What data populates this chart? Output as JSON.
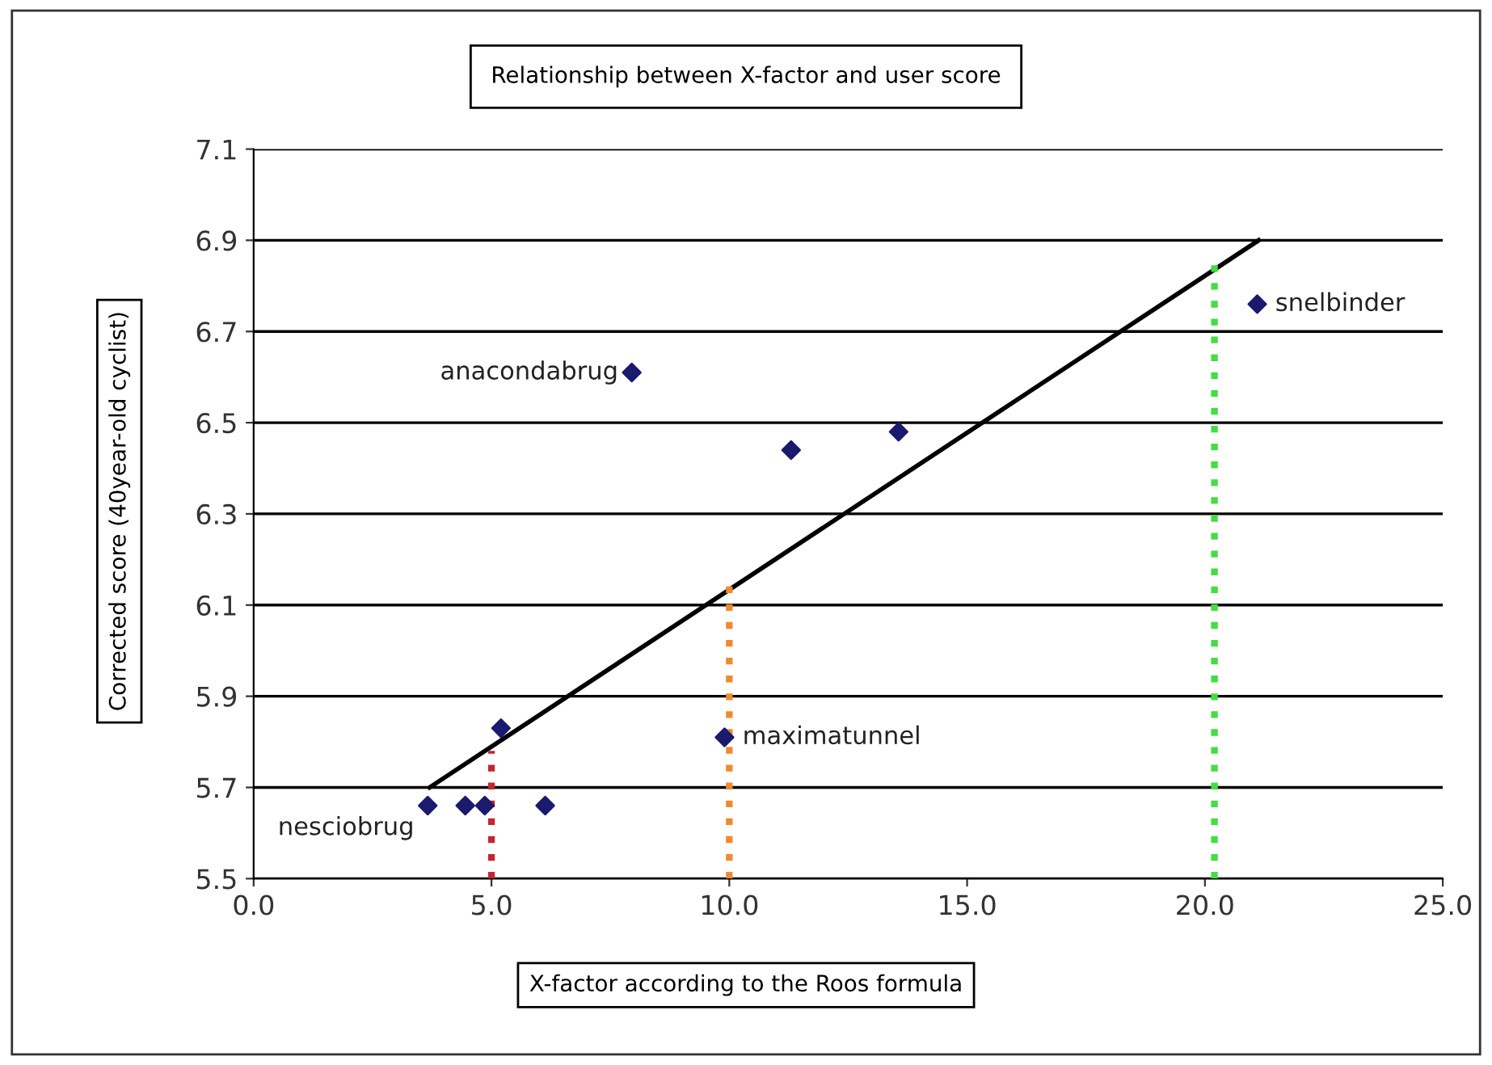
{
  "chart_data": {
    "type": "scatter",
    "title": "Relationship between X-factor and user score",
    "xlabel": "X-factor according to the Roos formula",
    "ylabel": "Corrected score (40year-old cyclist)",
    "series": [
      {
        "color": "#1a1a6e",
        "marker": "diamond",
        "x": [
          3.66,
          4.45,
          4.86,
          6.13,
          5.2,
          9.9,
          7.95,
          11.3,
          13.56,
          21.1
        ],
        "values": [
          5.66,
          5.66,
          5.66,
          5.66,
          5.83,
          5.81,
          6.61,
          6.44,
          6.48,
          6.76
        ]
      },
      {
        "type": "line",
        "color": "#000000",
        "marker": "none",
        "line_style": "solid",
        "x": [
          3.7,
          21.13
        ],
        "values": [
          5.7,
          6.9
        ]
      },
      {
        "type": "line",
        "color": "#c0282d",
        "marker": "none",
        "line_style": "dotted",
        "x": [
          5,
          5
        ],
        "values": [
          5.5,
          5.78
        ]
      },
      {
        "type": "line",
        "color": "#f08a30",
        "marker": "none",
        "line_style": "dotted",
        "x": [
          10,
          10
        ],
        "values": [
          5.5,
          6.15
        ]
      },
      {
        "type": "line",
        "color": "#44dd44",
        "marker": "none",
        "line_style": "dotted",
        "x": [
          20.2,
          20.2
        ],
        "values": [
          5.5,
          6.85
        ]
      }
    ],
    "annotations": [
      {
        "text": "anacondabrug",
        "x": 7.95,
        "y": 6.61
      },
      {
        "text": "nesciobrug",
        "x": 3.66,
        "y": 5.66
      },
      {
        "text": "maximatunnel",
        "x": 9.9,
        "y": 5.81
      },
      {
        "text": "snelbinder",
        "x": 21.1,
        "y": 6.76
      }
    ],
    "xlim": [
      0,
      25
    ],
    "xticks": [
      {
        "value": 0,
        "label": "0.0"
      },
      {
        "value": 5,
        "label": "5.0"
      },
      {
        "value": 10,
        "label": "10.0"
      },
      {
        "value": 15,
        "label": "15.0"
      },
      {
        "value": 20,
        "label": "20.0"
      },
      {
        "value": 25,
        "label": "25.0"
      }
    ],
    "ylim": [
      5.5,
      7.1
    ],
    "yticks": [
      5.5,
      5.7,
      5.9,
      6.1,
      6.3,
      6.5,
      6.7,
      6.9,
      7.1
    ],
    "grid": "y",
    "legend": false
  }
}
